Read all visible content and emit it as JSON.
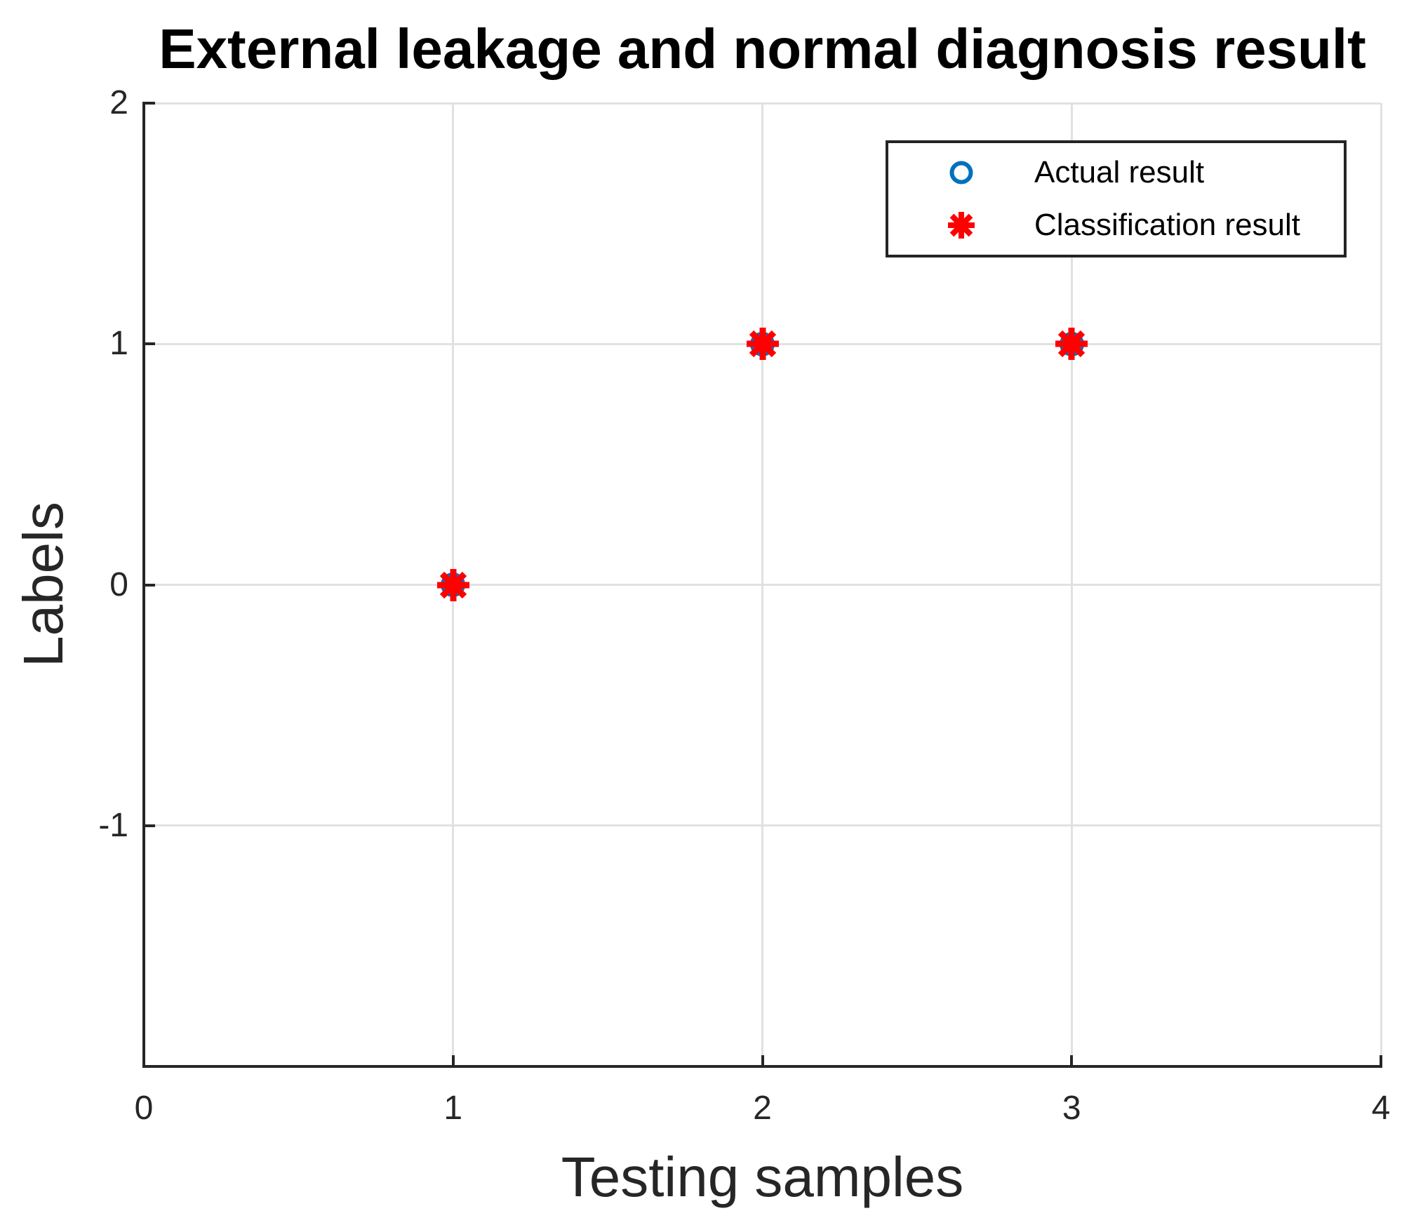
{
  "chart_data": {
    "type": "scatter",
    "title": "External leakage and normal diagnosis result",
    "xlabel": "Testing samples",
    "ylabel": "Labels",
    "xlim": [
      0,
      4
    ],
    "ylim": [
      -2,
      2
    ],
    "xticks": [
      0,
      1,
      2,
      3,
      4
    ],
    "yticks": [
      2,
      1,
      0,
      -1
    ],
    "grid": true,
    "grid_x": [
      1,
      2,
      3,
      4
    ],
    "grid_y": [
      2,
      1,
      0,
      -1
    ],
    "legend_position": "top-right",
    "legend_border_on": true,
    "series": [
      {
        "name": "Actual result",
        "marker": "circle",
        "color": "#0072BD",
        "points": [
          [
            1,
            0
          ],
          [
            2,
            1
          ],
          [
            3,
            1
          ]
        ]
      },
      {
        "name": "Classification result",
        "marker": "asterisk",
        "color": "#FF0000",
        "points": [
          [
            1,
            0
          ],
          [
            2,
            1
          ],
          [
            3,
            1
          ]
        ]
      }
    ],
    "colors": {
      "axis": "#262626",
      "grid": "#E1E1E1",
      "tick_label": "#262626",
      "title": "#000000",
      "background": "#FFFFFF"
    }
  }
}
